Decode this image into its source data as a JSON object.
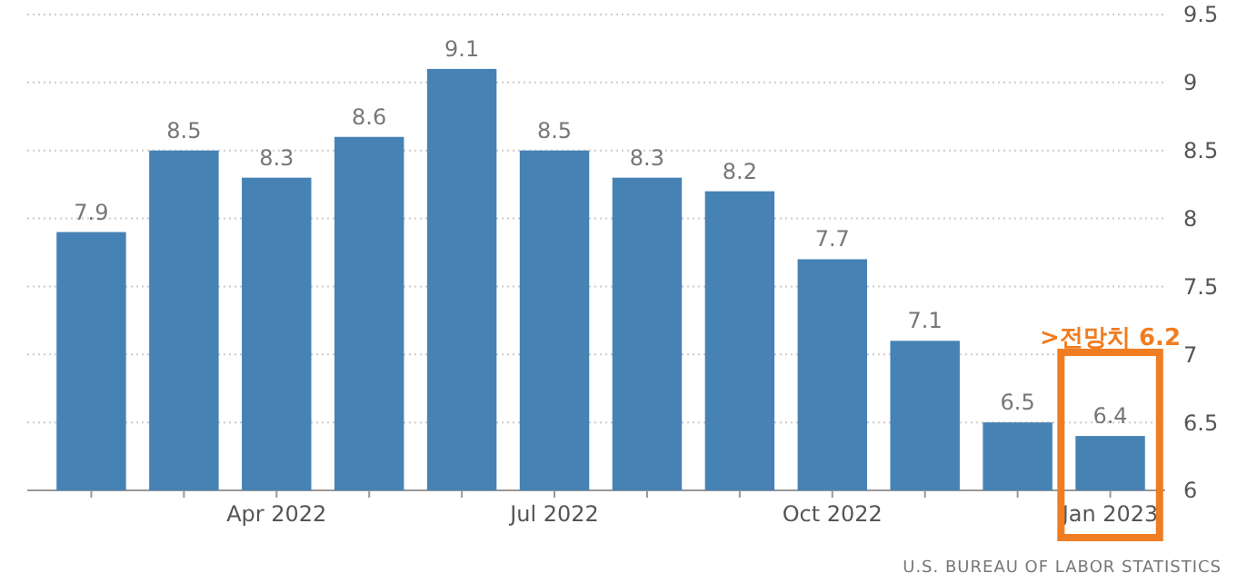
{
  "chart_data": {
    "type": "bar",
    "categories": [
      null,
      null,
      "Apr 2022",
      null,
      null,
      "Jul 2022",
      null,
      null,
      "Oct 2022",
      null,
      null,
      "Jan 2023"
    ],
    "values": [
      7.9,
      8.5,
      8.3,
      8.6,
      9.1,
      8.5,
      8.3,
      8.2,
      7.7,
      7.1,
      6.5,
      6.4
    ],
    "color": "#4682b4",
    "data_labels": true,
    "ylim": [
      6,
      9.5
    ],
    "yticks": [
      6,
      6.5,
      7,
      7.5,
      8,
      8.5,
      9,
      9.5
    ],
    "grid": "y",
    "annotations": [
      ">전망치 6.2",
      "U.S. BUREAU OF LABOR STATISTICS"
    ]
  }
}
